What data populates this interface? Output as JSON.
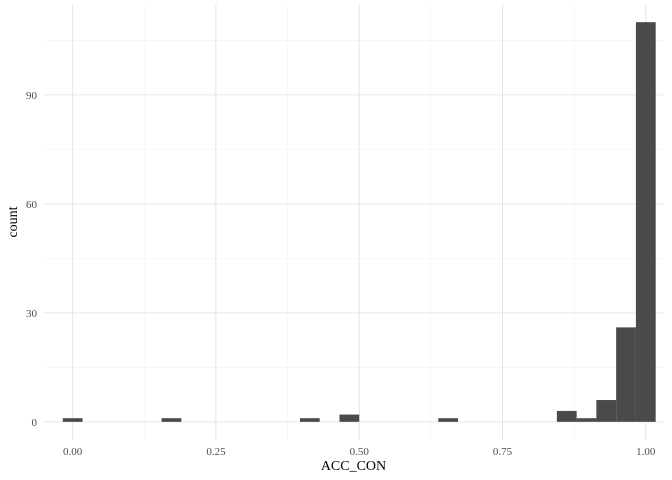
{
  "chart_data": {
    "type": "bar",
    "subtype": "histogram",
    "title": "",
    "xlabel": "ACC_CON",
    "ylabel": "count",
    "x_ticks": [
      "0.00",
      "0.25",
      "0.50",
      "0.75",
      "1.00"
    ],
    "y_ticks": [
      "0",
      "30",
      "60",
      "90"
    ],
    "xlim": [
      -0.05,
      1.03
    ],
    "ylim": [
      -5,
      115
    ],
    "bin_width": 0.0345,
    "bins": [
      {
        "center": 0.0,
        "count": 1
      },
      {
        "center": 0.1724,
        "count": 1
      },
      {
        "center": 0.4138,
        "count": 1
      },
      {
        "center": 0.4828,
        "count": 2
      },
      {
        "center": 0.6552,
        "count": 1
      },
      {
        "center": 0.8621,
        "count": 3
      },
      {
        "center": 0.8966,
        "count": 1
      },
      {
        "center": 0.931,
        "count": 6
      },
      {
        "center": 0.9655,
        "count": 26
      },
      {
        "center": 1.0,
        "count": 110
      }
    ],
    "bar_color": "#4a4a4a",
    "grid": true,
    "legend": "none"
  }
}
